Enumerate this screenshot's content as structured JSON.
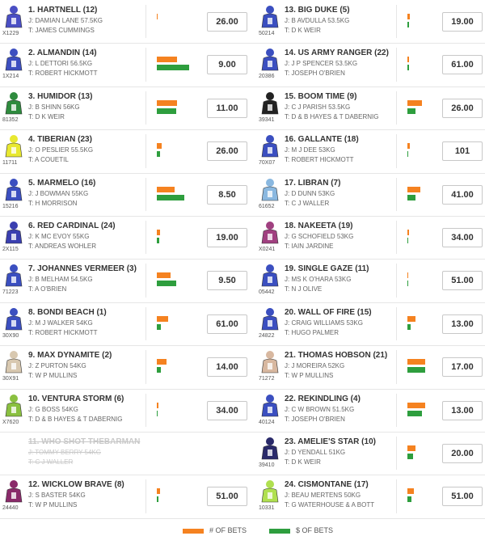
{
  "runners": [
    {
      "name": "1. HARTNELL (12)",
      "jockey": "J: DAMIAN LANE 57.5KG",
      "trainer": "T: JAMES CUMMINGS",
      "form": "X1229",
      "odds": "26.00",
      "bets": 1,
      "dollars": 0,
      "silk": "#4a4fc4"
    },
    {
      "name": "2. ALMANDIN (14)",
      "jockey": "J: L DETTORI 56.5KG",
      "trainer": "T: ROBERT HICKMOTT",
      "form": "1X214",
      "odds": "9.00",
      "bets": 25,
      "dollars": 40,
      "silk": "#3d4fc0"
    },
    {
      "name": "3. HUMIDOR (13)",
      "jockey": "J: B SHINN 56KG",
      "trainer": "T: D K WEIR",
      "form": "81352",
      "odds": "11.00",
      "bets": 25,
      "dollars": 24,
      "silk": "#2e8b3e"
    },
    {
      "name": "4. TIBERIAN (23)",
      "jockey": "J: O PESLIER 55.5KG",
      "trainer": "T: A COUETIL",
      "form": "11711",
      "odds": "26.00",
      "bets": 6,
      "dollars": 4,
      "silk": "#e8e830"
    },
    {
      "name": "5. MARMELO (16)",
      "jockey": "J: J BOWMAN 55KG",
      "trainer": "T: H MORRISON",
      "form": "15216",
      "odds": "8.50",
      "bets": 22,
      "dollars": 34,
      "silk": "#3b4fc0"
    },
    {
      "name": "6. RED CARDINAL (24)",
      "jockey": "J: K MC EVOY 55KG",
      "trainer": "T: ANDREAS WOHLER",
      "form": "2X115",
      "odds": "19.00",
      "bets": 4,
      "dollars": 3,
      "silk": "#3a3fb0"
    },
    {
      "name": "7. JOHANNES VERMEER (3)",
      "jockey": "J: B MELHAM 54.5KG",
      "trainer": "T: A O'BRIEN",
      "form": "71223",
      "odds": "9.50",
      "bets": 17,
      "dollars": 24,
      "silk": "#3b4fc0"
    },
    {
      "name": "8. BONDI BEACH (1)",
      "jockey": "J: M J WALKER 54KG",
      "trainer": "T: ROBERT HICKMOTT",
      "form": "30X90",
      "odds": "61.00",
      "bets": 14,
      "dollars": 5,
      "silk": "#3b4fc0"
    },
    {
      "name": "9. MAX DYNAMITE (2)",
      "jockey": "J: Z PURTON 54KG",
      "trainer": "T: W P MULLINS",
      "form": "30X91",
      "odds": "14.00",
      "bets": 12,
      "dollars": 5,
      "silk": "#d8c8b0"
    },
    {
      "name": "10. VENTURA STORM (6)",
      "jockey": "J: G BOSS 54KG",
      "trainer": "T: D & B HAYES & T DABERNIG",
      "form": "X7620",
      "odds": "34.00",
      "bets": 2,
      "dollars": 1,
      "silk": "#8ac040"
    },
    {
      "name": "11. WHO SHOT THEBARMAN",
      "jockey": "J: TOMMY BERRY 54KG",
      "trainer": "T: C J WALLER",
      "scratched": true
    },
    {
      "name": "12. WICKLOW BRAVE (8)",
      "jockey": "J: S BASTER 54KG",
      "trainer": "T: W P MULLINS",
      "form": "24440",
      "odds": "51.00",
      "bets": 4,
      "dollars": 2,
      "silk": "#8a2a6a"
    },
    {
      "name": "13. BIG DUKE (5)",
      "jockey": "J: B AVDULLA 53.5KG",
      "trainer": "T: D K WEIR",
      "form": "50214",
      "odds": "19.00",
      "bets": 3,
      "dollars": 2,
      "silk": "#3b4fc0"
    },
    {
      "name": "14. US ARMY RANGER (22)",
      "jockey": "J: J P SPENCER 53.5KG",
      "trainer": "T: JOSEPH O'BRIEN",
      "form": "20386",
      "odds": "61.00",
      "bets": 2,
      "dollars": 2,
      "silk": "#3b4fc0"
    },
    {
      "name": "15. BOOM TIME (9)",
      "jockey": "J: C J PARISH 53.5KG",
      "trainer": "T: D & B HAYES & T DABERNIG",
      "form": "39341",
      "odds": "26.00",
      "bets": 18,
      "dollars": 10,
      "silk": "#222222"
    },
    {
      "name": "16. GALLANTE (18)",
      "jockey": "J: M J DEE 53KG",
      "trainer": "T: ROBERT HICKMOTT",
      "form": "70X07",
      "odds": "101",
      "bets": 3,
      "dollars": 1,
      "silk": "#3b4fc0"
    },
    {
      "name": "17. LIBRAN (7)",
      "jockey": "J: D DUNN 53KG",
      "trainer": "T: C J WALLER",
      "form": "61652",
      "odds": "41.00",
      "bets": 16,
      "dollars": 10,
      "silk": "#8ab8e0"
    },
    {
      "name": "18. NAKEETA (19)",
      "jockey": "J: G SCHOFIELD 53KG",
      "trainer": "T: IAIN JARDINE",
      "form": "X0241",
      "odds": "34.00",
      "bets": 2,
      "dollars": 1,
      "silk": "#a04080"
    },
    {
      "name": "19. SINGLE GAZE (11)",
      "jockey": "J: MS K O'HARA 53KG",
      "trainer": "T: N J OLIVE",
      "form": "05442",
      "odds": "51.00",
      "bets": 1,
      "dollars": 1,
      "silk": "#3b4fc0"
    },
    {
      "name": "20. WALL OF FIRE (15)",
      "jockey": "J: CRAIG WILLIAMS 53KG",
      "trainer": "T: HUGO PALMER",
      "form": "24822",
      "odds": "13.00",
      "bets": 10,
      "dollars": 4,
      "silk": "#3b4fc0"
    },
    {
      "name": "21. THOMAS HOBSON (21)",
      "jockey": "J: J MOREIRA 52KG",
      "trainer": "T: W P MULLINS",
      "form": "71272",
      "odds": "17.00",
      "bets": 22,
      "dollars": 22,
      "silk": "#d8b8a0"
    },
    {
      "name": "22. REKINDLING (4)",
      "jockey": "J: C W BROWN 51.5KG",
      "trainer": "T: JOSEPH O'BRIEN",
      "form": "40124",
      "odds": "13.00",
      "bets": 22,
      "dollars": 18,
      "silk": "#3b4fc0"
    },
    {
      "name": "23. AMELIE'S STAR (10)",
      "jockey": "J: D YENDALL 51KG",
      "trainer": "T: D K WEIR",
      "form": "39410",
      "odds": "20.00",
      "bets": 10,
      "dollars": 7,
      "silk": "#2a2a6a"
    },
    {
      "name": "24. CISMONTANE (17)",
      "jockey": "J: BEAU MERTENS 50KG",
      "trainer": "T: G WATERHOUSE & A BOTT",
      "form": "10331",
      "odds": "51.00",
      "bets": 8,
      "dollars": 5,
      "silk": "#b0e050"
    }
  ],
  "legend": {
    "bets": "# OF BETS",
    "dollars": "$ OF BETS",
    "bets_color": "#f58220",
    "dollars_color": "#2e9e3e"
  }
}
